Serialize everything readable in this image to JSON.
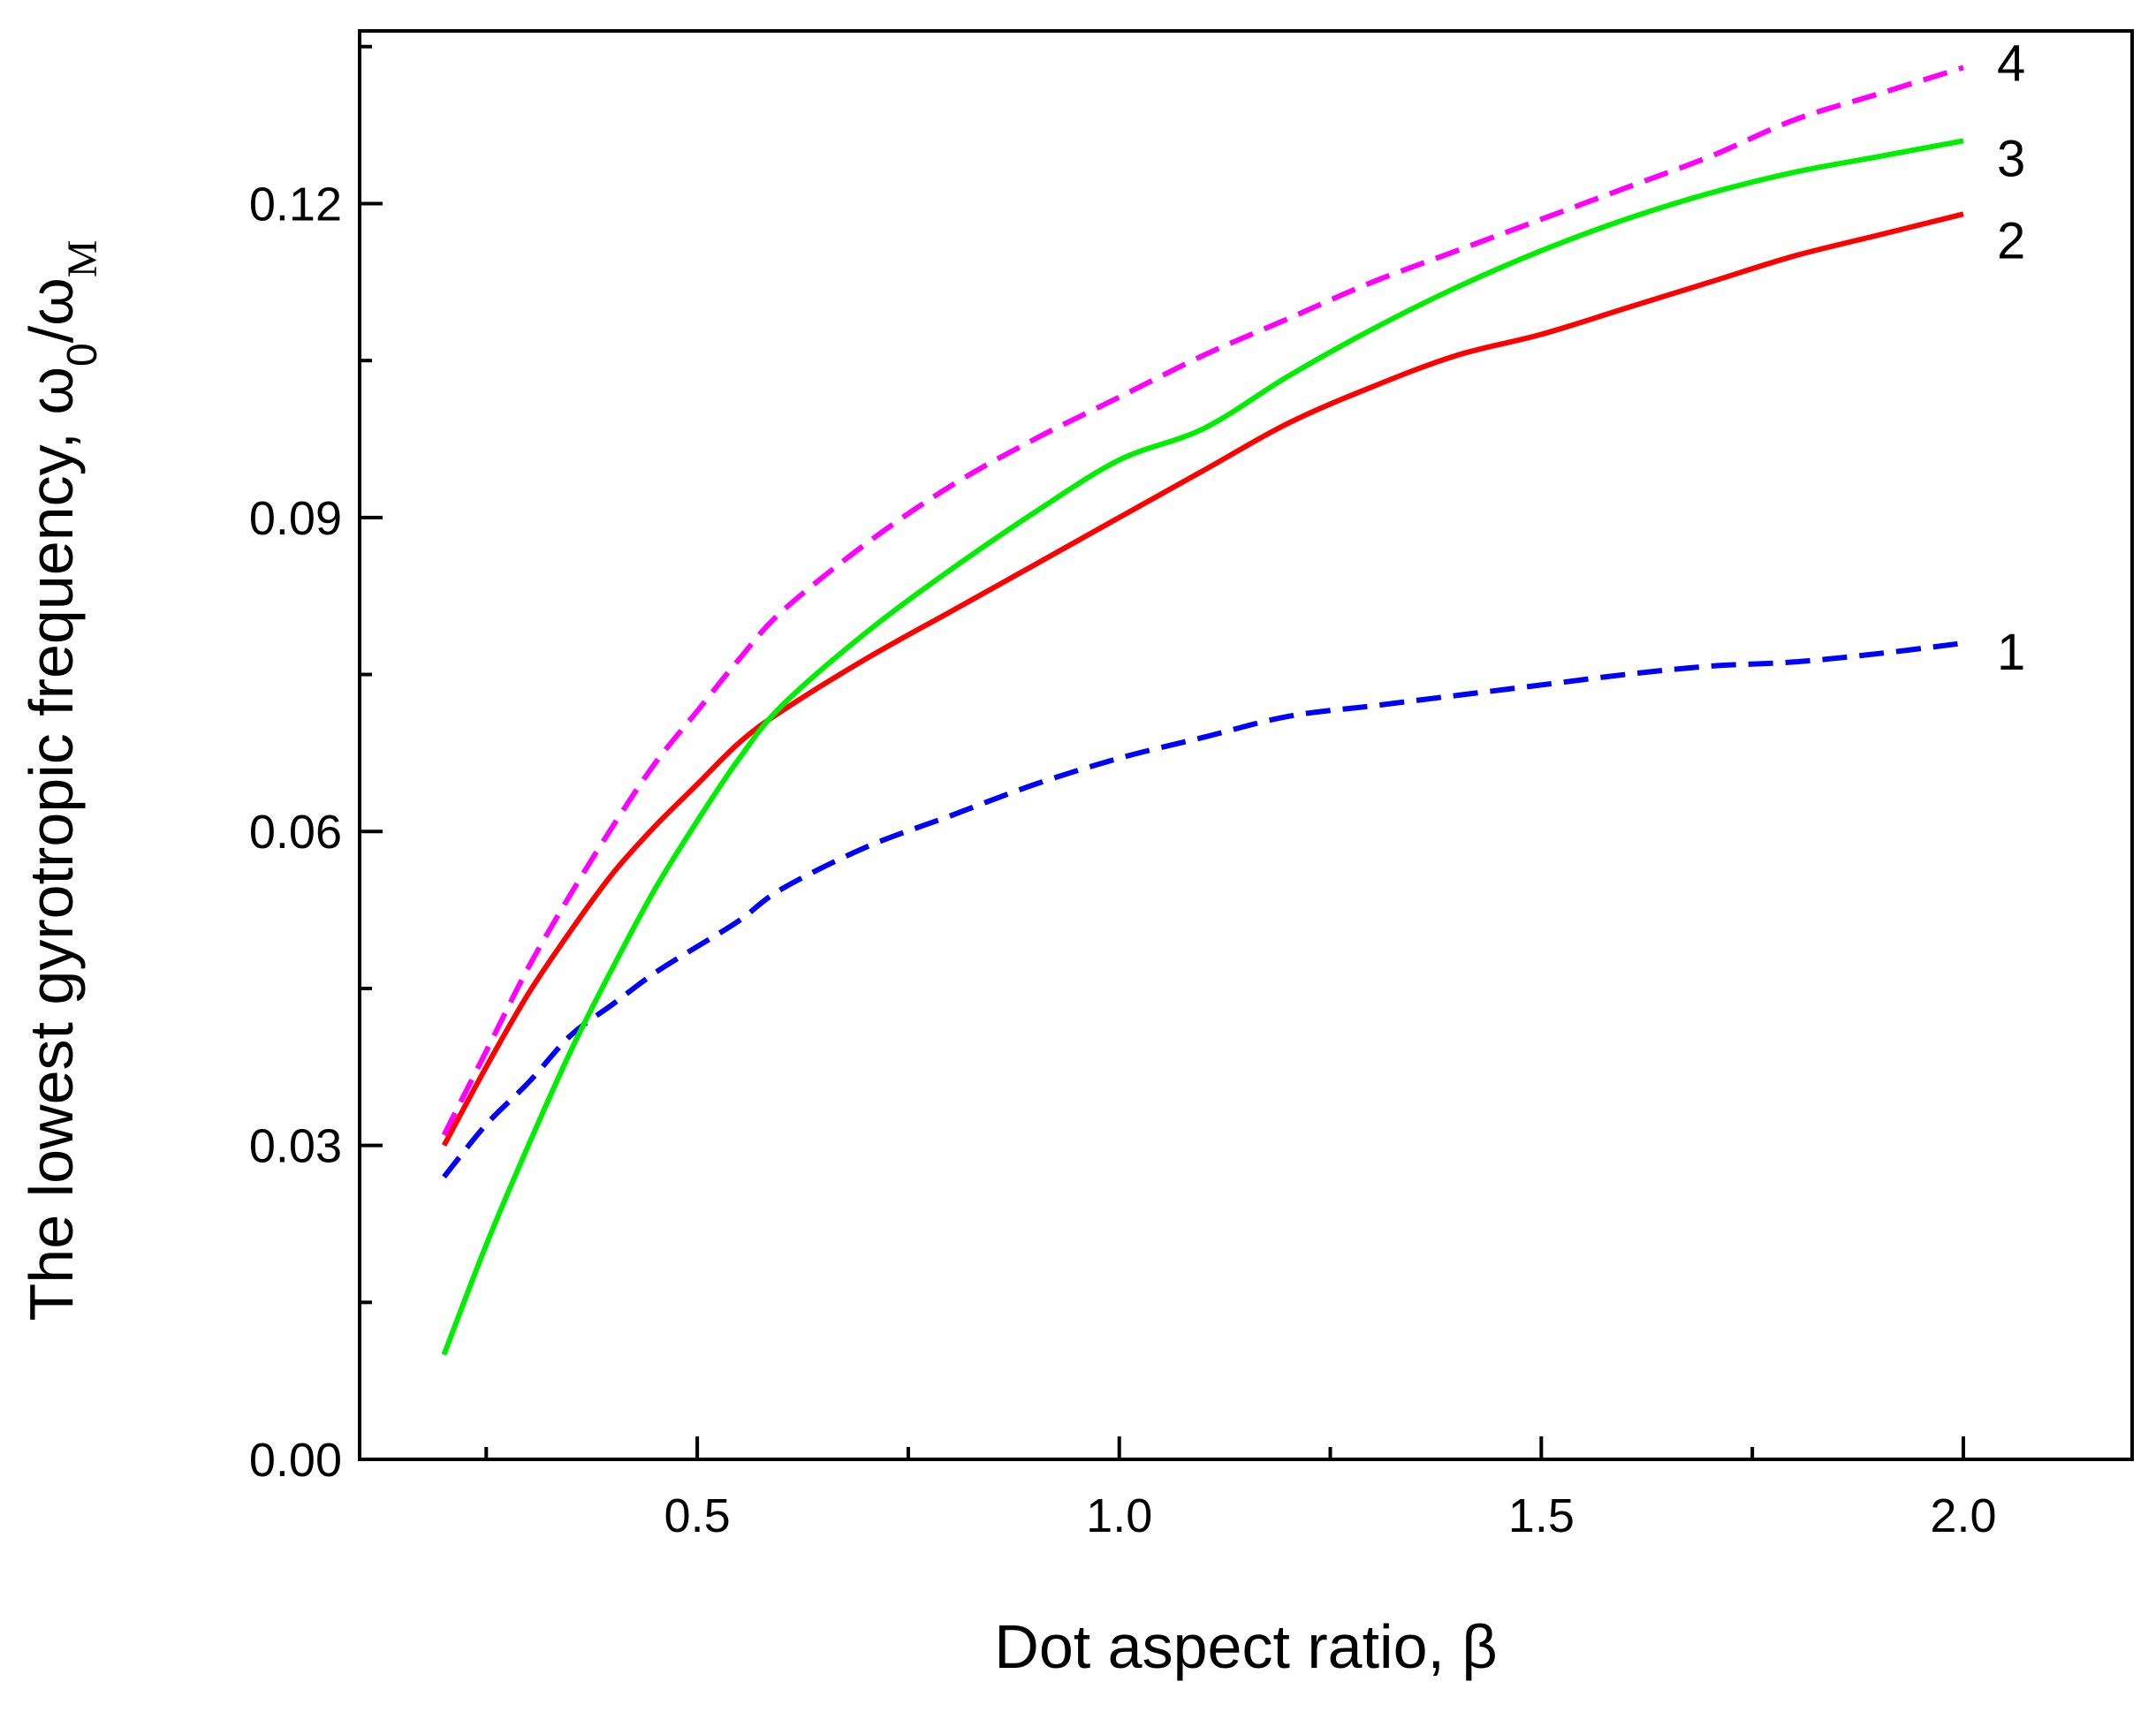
{
  "chart_data": {
    "type": "line",
    "xlabel": "Dot aspect ratio, β",
    "ylabel": {
      "prefix": "The lowest gyrotropic frequency, ",
      "omega": "ω",
      "sub0": "0",
      "slash": "/",
      "omega2": "ω",
      "subM": "M"
    },
    "xlim": [
      0.1,
      2.2
    ],
    "ylim": [
      0.0,
      0.1365
    ],
    "xticks": [
      {
        "value": 0.5,
        "label": "0.5"
      },
      {
        "value": 1.0,
        "label": "1.0"
      },
      {
        "value": 1.5,
        "label": "1.5"
      },
      {
        "value": 2.0,
        "label": "2.0"
      }
    ],
    "xminor_ticks": [
      0.25,
      0.75,
      1.25,
      1.75
    ],
    "yticks": [
      {
        "value": 0.0,
        "label": "0.00"
      },
      {
        "value": 0.03,
        "label": "0.03"
      },
      {
        "value": 0.06,
        "label": "0.06"
      },
      {
        "value": 0.09,
        "label": "0.09"
      },
      {
        "value": 0.12,
        "label": "0.12"
      }
    ],
    "yminor_ticks": [
      0.015,
      0.045,
      0.075,
      0.105,
      0.135
    ],
    "grid": false,
    "series": [
      {
        "name": "1",
        "color": "#0000ff",
        "dashed": true,
        "x": [
          0.2,
          0.25,
          0.3,
          0.35,
          0.4,
          0.45,
          0.5,
          0.55,
          0.6,
          0.7,
          0.8,
          0.9,
          1.0,
          1.1,
          1.2,
          1.3,
          1.4,
          1.5,
          1.6,
          1.7,
          1.8,
          1.9,
          2.0
        ],
        "y": [
          0.027,
          0.032,
          0.036,
          0.0405,
          0.0435,
          0.0465,
          0.049,
          0.0515,
          0.0545,
          0.0585,
          0.0615,
          0.0645,
          0.067,
          0.069,
          0.071,
          0.072,
          0.073,
          0.074,
          0.075,
          0.0758,
          0.0762,
          0.077,
          0.078
        ]
      },
      {
        "name": "2",
        "color": "#ff0000",
        "dashed": false,
        "x": [
          0.2,
          0.25,
          0.3,
          0.35,
          0.4,
          0.45,
          0.5,
          0.55,
          0.6,
          0.7,
          0.8,
          0.9,
          1.0,
          1.1,
          1.2,
          1.3,
          1.4,
          1.5,
          1.6,
          1.7,
          1.8,
          1.9,
          2.0
        ],
        "y": [
          0.03,
          0.0375,
          0.0445,
          0.0505,
          0.056,
          0.0605,
          0.0645,
          0.0685,
          0.0715,
          0.0765,
          0.081,
          0.0855,
          0.09,
          0.0945,
          0.099,
          0.1025,
          0.1055,
          0.1075,
          0.11,
          0.1125,
          0.115,
          0.117,
          0.119
        ]
      },
      {
        "name": "3",
        "color": "#00ee00",
        "dashed": false,
        "x": [
          0.2,
          0.25,
          0.3,
          0.35,
          0.4,
          0.45,
          0.5,
          0.55,
          0.6,
          0.7,
          0.8,
          0.9,
          1.0,
          1.1,
          1.2,
          1.3,
          1.4,
          1.5,
          1.6,
          1.7,
          1.8,
          1.9,
          2.0
        ],
        "y": [
          0.01,
          0.0205,
          0.03,
          0.039,
          0.047,
          0.0545,
          0.061,
          0.067,
          0.072,
          0.079,
          0.085,
          0.0905,
          0.0955,
          0.0985,
          0.1035,
          0.108,
          0.112,
          0.1155,
          0.1185,
          0.121,
          0.123,
          0.1245,
          0.126
        ]
      },
      {
        "name": "4",
        "color": "#ff00ff",
        "dashed": true,
        "x": [
          0.2,
          0.25,
          0.3,
          0.35,
          0.4,
          0.45,
          0.5,
          0.55,
          0.6,
          0.7,
          0.8,
          0.9,
          1.0,
          1.1,
          1.2,
          1.3,
          1.4,
          1.5,
          1.6,
          1.7,
          1.8,
          1.9,
          2.0
        ],
        "y": [
          0.031,
          0.039,
          0.047,
          0.054,
          0.0605,
          0.0665,
          0.0715,
          0.0765,
          0.081,
          0.0875,
          0.093,
          0.0975,
          0.1015,
          0.1055,
          0.109,
          0.1125,
          0.1155,
          0.1185,
          0.1215,
          0.1245,
          0.128,
          0.1305,
          0.133
        ]
      }
    ]
  }
}
